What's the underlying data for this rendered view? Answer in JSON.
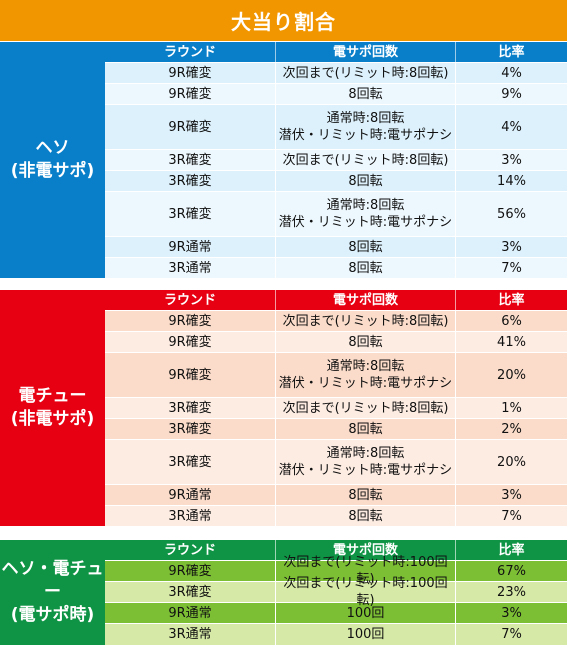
{
  "title": "大当り割合",
  "headers": {
    "round": "ラウンド",
    "densapo": "電サポ回数",
    "ratio": "比率"
  },
  "sections": [
    {
      "label_line1": "ヘソ",
      "label_line2": "(非電サポ)",
      "colors": {
        "side": "#0a7fc9",
        "header": "#0a7fc9",
        "row_a": "#dcf1fc",
        "row_b": "#edf8fe"
      },
      "rows": [
        {
          "round": "9R確変",
          "densapo": "次回まで(リミット時:8回転)",
          "ratio": "4%"
        },
        {
          "round": "9R確変",
          "densapo": "8回転",
          "ratio": "9%"
        },
        {
          "round": "9R確変",
          "densapo_line1": "通常時:8回転",
          "densapo_line2": "潜伏・リミット時:電サポナシ",
          "ratio": "4%"
        },
        {
          "round": "3R確変",
          "densapo": "次回まで(リミット時:8回転)",
          "ratio": "3%"
        },
        {
          "round": "3R確変",
          "densapo": "8回転",
          "ratio": "14%"
        },
        {
          "round": "3R確変",
          "densapo_line1": "通常時:8回転",
          "densapo_line2": "潜伏・リミット時:電サポナシ",
          "ratio": "56%"
        },
        {
          "round": "9R通常",
          "densapo": "8回転",
          "ratio": "3%"
        },
        {
          "round": "3R通常",
          "densapo": "8回転",
          "ratio": "7%"
        }
      ]
    },
    {
      "label_line1": "電チュー",
      "label_line2": "(非電サポ)",
      "colors": {
        "side": "#e60012",
        "header": "#e60012",
        "row_a": "#fbdcca",
        "row_b": "#fdece2"
      },
      "rows": [
        {
          "round": "9R確変",
          "densapo": "次回まで(リミット時:8回転)",
          "ratio": "6%"
        },
        {
          "round": "9R確変",
          "densapo": "8回転",
          "ratio": "41%"
        },
        {
          "round": "9R確変",
          "densapo_line1": "通常時:8回転",
          "densapo_line2": "潜伏・リミット時:電サポナシ",
          "ratio": "20%"
        },
        {
          "round": "3R確変",
          "densapo": "次回まで(リミット時:8回転)",
          "ratio": "1%"
        },
        {
          "round": "3R確変",
          "densapo": "8回転",
          "ratio": "2%"
        },
        {
          "round": "3R確変",
          "densapo_line1": "通常時:8回転",
          "densapo_line2": "潜伏・リミット時:電サポナシ",
          "ratio": "20%"
        },
        {
          "round": "9R通常",
          "densapo": "8回転",
          "ratio": "3%"
        },
        {
          "round": "3R通常",
          "densapo": "8回転",
          "ratio": "7%"
        }
      ]
    },
    {
      "label_line1": "ヘソ・電チュー",
      "label_line2": "(電サポ時)",
      "colors": {
        "side": "#0f9445",
        "header": "#0f9445",
        "row_a": "#7dbf34",
        "row_b": "#d6e9a6"
      },
      "rows": [
        {
          "round": "9R確変",
          "densapo": "次回まで(リミット時:100回転)",
          "ratio": "67%"
        },
        {
          "round": "3R確変",
          "densapo": "次回まで(リミット時:100回転)",
          "ratio": "23%"
        },
        {
          "round": "9R通常",
          "densapo": "100回",
          "ratio": "3%"
        },
        {
          "round": "3R通常",
          "densapo": "100回",
          "ratio": "7%"
        }
      ]
    }
  ]
}
